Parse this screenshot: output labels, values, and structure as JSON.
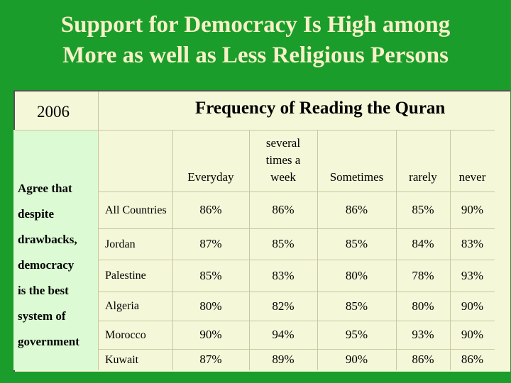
{
  "title_line1": "Support for Democracy Is High among",
  "title_line2": "More as well as Less Religious Persons",
  "year": "2006",
  "header": "Frequency of Reading the Quran",
  "row_heading": [
    "Agree that",
    "despite",
    "drawbacks,",
    "democracy",
    "is the best",
    "system of",
    "government"
  ],
  "chart_data": {
    "type": "table",
    "columns": [
      "Everyday",
      "several times a week",
      "Sometimes",
      "rarely",
      "never"
    ],
    "rows": [
      {
        "country": "All Countries",
        "values": [
          "86%",
          "86%",
          "86%",
          "85%",
          "90%"
        ]
      },
      {
        "country": "Jordan",
        "values": [
          "87%",
          "85%",
          "85%",
          "84%",
          "83%"
        ]
      },
      {
        "country": "Palestine",
        "values": [
          "85%",
          "83%",
          "80%",
          "78%",
          "93%"
        ]
      },
      {
        "country": "Algeria",
        "values": [
          "80%",
          "82%",
          "85%",
          "80%",
          "90%"
        ]
      },
      {
        "country": "Morocco",
        "values": [
          "90%",
          "94%",
          "95%",
          "93%",
          "90%"
        ]
      },
      {
        "country": "Kuwait",
        "values": [
          "87%",
          "89%",
          "90%",
          "86%",
          "86%"
        ]
      }
    ]
  }
}
